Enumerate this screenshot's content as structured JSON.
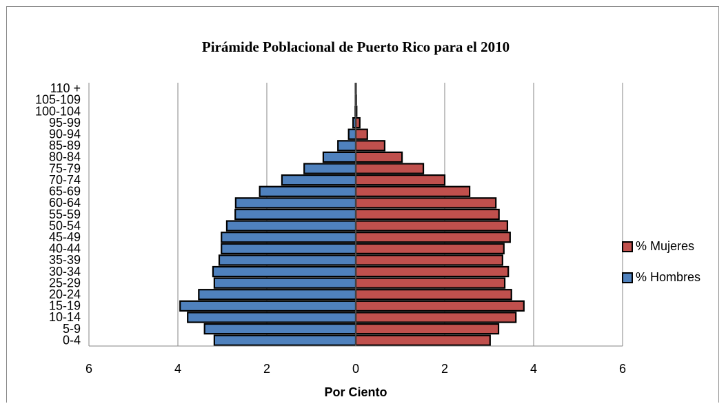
{
  "chart_data": {
    "type": "pyramid",
    "title": "Pirámide Poblacional de Puerto Rico para el 2010",
    "x_label": "Por Ciento",
    "categories": [
      "0-4",
      "5-9",
      "10-14",
      "15-19",
      "20-24",
      "25-29",
      "30-34",
      "35-39",
      "40-44",
      "45-49",
      "50-54",
      "55-59",
      "60-64",
      "65-69",
      "70-74",
      "75-79",
      "80-84",
      "85-89",
      "90-94",
      "95-99",
      "100-104",
      "105-109",
      "110 +"
    ],
    "series": [
      {
        "name": "% Mujeres",
        "color": "#c0504d",
        "values": [
          3.02,
          3.21,
          3.6,
          3.78,
          3.5,
          3.35,
          3.43,
          3.3,
          3.33,
          3.47,
          3.41,
          3.22,
          3.15,
          2.56,
          2.0,
          1.52,
          1.04,
          0.65,
          0.26,
          0.09,
          0.02,
          0.01,
          0.005
        ]
      },
      {
        "name": "% Hombres",
        "color": "#4f81bd",
        "values": [
          -3.18,
          -3.4,
          -3.78,
          -3.95,
          -3.53,
          -3.18,
          -3.21,
          -3.07,
          -3.02,
          -3.02,
          -2.9,
          -2.71,
          -2.7,
          -2.16,
          -1.66,
          -1.16,
          -0.73,
          -0.4,
          -0.16,
          -0.06,
          -0.01,
          -0.005,
          -0.005
        ]
      }
    ],
    "xlim": [
      -6,
      6
    ],
    "xticks": [
      {
        "value": -6,
        "label": "6"
      },
      {
        "value": -4,
        "label": "4"
      },
      {
        "value": -2,
        "label": "2"
      },
      0,
      2,
      4,
      6
    ],
    "grid": true,
    "legend": "right"
  }
}
